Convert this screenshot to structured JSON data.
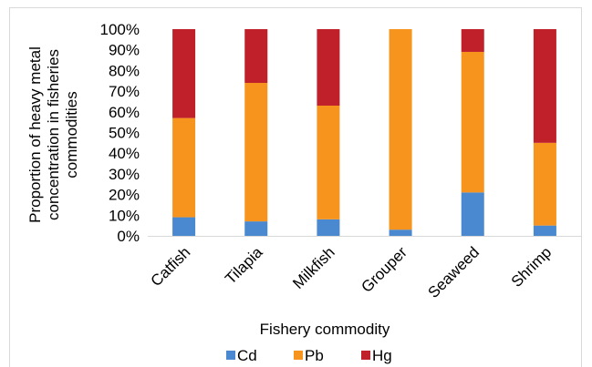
{
  "chart_data": {
    "type": "bar",
    "stacked": true,
    "normalized": true,
    "categories": [
      "Catfish",
      "Tilapia",
      "Milkfish",
      "Grouper",
      "Seaweed",
      "Shrimp"
    ],
    "series": [
      {
        "name": "Cd",
        "color": "#4a89cf",
        "values": [
          9,
          7,
          8,
          3,
          21,
          5
        ]
      },
      {
        "name": "Pb",
        "color": "#f7941d",
        "values": [
          48,
          67,
          55,
          97,
          68,
          40
        ]
      },
      {
        "name": "Hg",
        "color": "#c0202a",
        "values": [
          43,
          26,
          37,
          0,
          11,
          55
        ]
      }
    ],
    "ylim": [
      0,
      100
    ],
    "ytick_labels": [
      "0%",
      "10%",
      "20%",
      "30%",
      "40%",
      "50%",
      "60%",
      "70%",
      "80%",
      "90%",
      "100%"
    ],
    "ylabel_lines": [
      "Proportion of heavy metal",
      "concentration in fisheries",
      "commodities"
    ],
    "xlabel": "Fishery commodity",
    "grid": false,
    "legend_position": "bottom"
  }
}
